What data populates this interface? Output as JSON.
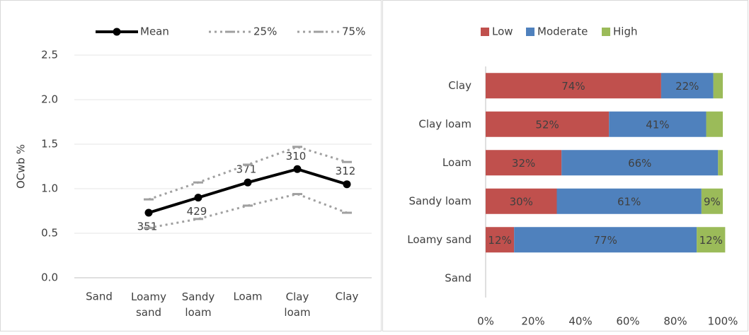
{
  "chart_data": [
    {
      "type": "line",
      "y_label": "OCwb %",
      "categories": [
        "Sand",
        "Loamy sand",
        "Sandy loam",
        "Loam",
        "Clay loam",
        "Clay"
      ],
      "series": [
        {
          "name": "Mean",
          "color": "#000000",
          "values": [
            null,
            0.73,
            0.9,
            1.07,
            1.22,
            1.05
          ],
          "point_labels": [
            null,
            351,
            429,
            371,
            310,
            312
          ]
        },
        {
          "name": "25%",
          "color": "#a0a0a0",
          "values": [
            null,
            0.56,
            0.66,
            0.81,
            0.94,
            0.73
          ]
        },
        {
          "name": "75%",
          "color": "#a0a0a0",
          "values": [
            null,
            0.88,
            1.07,
            1.27,
            1.47,
            1.3
          ]
        }
      ],
      "ylim": [
        0,
        2.5
      ],
      "yticks": [
        {
          "value": 0,
          "label": "0.0"
        },
        {
          "value": 0.5,
          "label": "0.5"
        },
        {
          "value": 1,
          "label": "1.0"
        },
        {
          "value": 1.5,
          "label": "1.5"
        },
        {
          "value": 2,
          "label": "2.0"
        },
        {
          "value": 2.5,
          "label": "2.5"
        }
      ],
      "grid": true,
      "legend": "top"
    },
    {
      "type": "stacked-barh",
      "categories": [
        "Clay",
        "Clay loam",
        "Loam",
        "Sandy loam",
        "Loamy sand",
        "Sand"
      ],
      "series": [
        {
          "name": "Low",
          "color": "#c0504d",
          "values": [
            74,
            52,
            32,
            30,
            12,
            null
          ],
          "value_labels": [
            "74%",
            "52%",
            "32%",
            "30%",
            "12%",
            null
          ]
        },
        {
          "name": "Moderate",
          "color": "#4f81bd",
          "values": [
            22,
            41,
            66,
            61,
            77,
            null
          ],
          "value_labels": [
            "22%",
            "41%",
            "66%",
            "61%",
            "77%",
            null
          ]
        },
        {
          "name": "High",
          "color": "#9bbb59",
          "values": [
            4,
            7,
            2,
            9,
            12,
            null
          ],
          "value_labels": [
            null,
            null,
            null,
            "9%",
            "12%",
            null
          ]
        }
      ],
      "xlim": [
        0,
        100
      ],
      "xticks": [
        {
          "value": 0,
          "label": "0%"
        },
        {
          "value": 20,
          "label": "20%"
        },
        {
          "value": 40,
          "label": "40%"
        },
        {
          "value": 60,
          "label": "60%"
        },
        {
          "value": 80,
          "label": "80%"
        },
        {
          "value": 100,
          "label": "100%"
        }
      ],
      "legend": "top"
    }
  ]
}
